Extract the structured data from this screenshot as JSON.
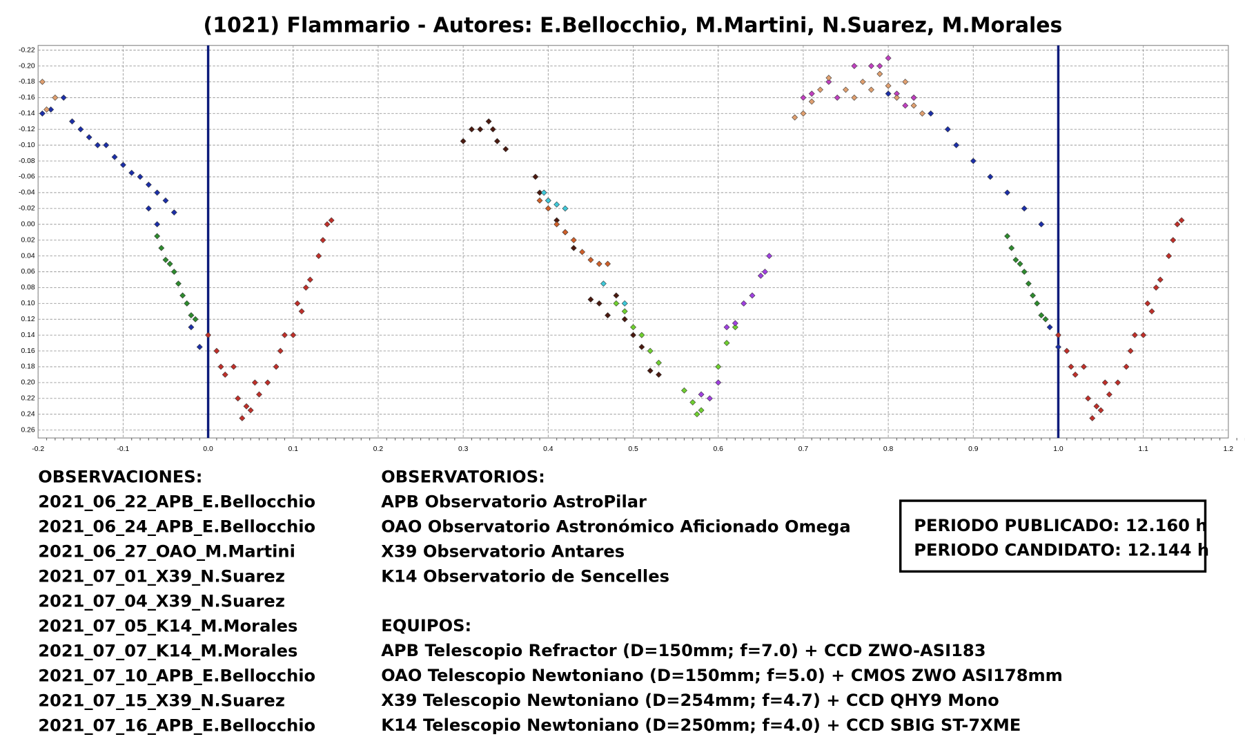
{
  "chart_data": {
    "type": "scatter",
    "title": "(1021) Flammario - Autores: E.Bellocchio, M.Martini, N.Suarez, M.Morales",
    "xlim": [
      -0.2,
      1.2
    ],
    "ylim": [
      -0.226,
      0.27
    ],
    "y_inverted": true,
    "grid": true,
    "vlines": [
      0,
      1
    ],
    "vline_color": "#0b1a7a",
    "xticks": [
      -0.2,
      -0.1,
      {
        "value": 0,
        "label": "0.0"
      },
      0.1,
      0.2,
      0.3,
      0.4,
      0.5,
      0.6,
      0.7,
      0.8,
      0.9,
      {
        "value": 1,
        "label": "1.0"
      },
      1.1,
      1.2
    ],
    "yticks": [
      {
        "value": -0.22,
        "label": "-0.22"
      },
      {
        "value": -0.2,
        "label": "-0.20"
      },
      {
        "value": -0.18,
        "label": "-0.18"
      },
      {
        "value": -0.16,
        "label": "-0.16"
      },
      {
        "value": -0.14,
        "label": "-0.14"
      },
      {
        "value": -0.12,
        "label": "-0.12"
      },
      {
        "value": -0.1,
        "label": "-0.10"
      },
      {
        "value": -0.08,
        "label": "-0.08"
      },
      {
        "value": -0.06,
        "label": "-0.06"
      },
      {
        "value": -0.04,
        "label": "-0.04"
      },
      {
        "value": -0.02,
        "label": "-0.02"
      },
      {
        "value": 0,
        "label": "0.00"
      },
      {
        "value": 0.02,
        "label": "0.02"
      },
      {
        "value": 0.04,
        "label": "0.04"
      },
      {
        "value": 0.06,
        "label": "0.06"
      },
      {
        "value": 0.08,
        "label": "0.08"
      },
      {
        "value": 0.1,
        "label": "0.10"
      },
      {
        "value": 0.12,
        "label": "0.12"
      },
      {
        "value": 0.14,
        "label": "0.14"
      },
      {
        "value": 0.16,
        "label": "0.16"
      },
      {
        "value": 0.18,
        "label": "0.18"
      },
      {
        "value": 0.2,
        "label": "0.20"
      },
      {
        "value": 0.22,
        "label": "0.22"
      },
      {
        "value": 0.24,
        "label": "0.24"
      },
      {
        "value": 0.26,
        "label": "0.26"
      }
    ],
    "series": [
      {
        "color": "#1c2fa8",
        "x": [
          -0.195,
          -0.185,
          -0.17,
          -0.16,
          -0.15,
          -0.14,
          -0.13,
          -0.12,
          -0.11,
          -0.1,
          -0.09,
          -0.08,
          -0.07,
          -0.06,
          -0.05,
          -0.04,
          -0.07,
          -0.06,
          -0.02,
          -0.01,
          0.8,
          0.83,
          0.85,
          0.87,
          0.88,
          0.9,
          0.92,
          0.94,
          0.96,
          0.98,
          0.99,
          1.0
        ],
        "y": [
          -0.14,
          -0.145,
          -0.16,
          -0.13,
          -0.12,
          -0.11,
          -0.1,
          -0.1,
          -0.085,
          -0.075,
          -0.065,
          -0.06,
          -0.05,
          -0.04,
          -0.03,
          -0.015,
          -0.02,
          0.0,
          0.13,
          0.155,
          -0.165,
          -0.16,
          -0.14,
          -0.12,
          -0.1,
          -0.08,
          -0.06,
          -0.04,
          -0.02,
          0.0,
          0.13,
          0.155
        ]
      },
      {
        "color": "#2e8b2e",
        "x": [
          -0.06,
          -0.055,
          -0.05,
          -0.045,
          -0.04,
          -0.035,
          -0.03,
          -0.025,
          -0.02,
          -0.015,
          0.94,
          0.945,
          0.95,
          0.955,
          0.96,
          0.965,
          0.97,
          0.975,
          0.98,
          0.985
        ],
        "y": [
          0.015,
          0.03,
          0.045,
          0.05,
          0.06,
          0.075,
          0.09,
          0.1,
          0.115,
          0.12,
          0.015,
          0.03,
          0.045,
          0.05,
          0.06,
          0.075,
          0.09,
          0.1,
          0.115,
          0.12
        ]
      },
      {
        "color": "#c0302a",
        "x": [
          0.0,
          0.01,
          0.015,
          0.02,
          0.03,
          0.035,
          0.04,
          0.045,
          0.05,
          0.055,
          0.06,
          0.07,
          0.08,
          0.085,
          0.09,
          0.1,
          0.105,
          0.11,
          0.115,
          0.12,
          0.13,
          0.135,
          0.14,
          0.145,
          1.0,
          1.01,
          1.015,
          1.02,
          1.03,
          1.035,
          1.04,
          1.045,
          1.05,
          1.055,
          1.06,
          1.07,
          1.08,
          1.085,
          1.09,
          1.1,
          1.105,
          1.11,
          1.115,
          1.12,
          1.13,
          1.135,
          1.14,
          1.145
        ],
        "y": [
          0.14,
          0.16,
          0.18,
          0.19,
          0.18,
          0.22,
          0.245,
          0.23,
          0.235,
          0.2,
          0.215,
          0.2,
          0.18,
          0.16,
          0.14,
          0.14,
          0.1,
          0.11,
          0.08,
          0.07,
          0.04,
          0.02,
          0.0,
          -0.005,
          0.14,
          0.16,
          0.18,
          0.19,
          0.18,
          0.22,
          0.245,
          0.23,
          0.235,
          0.2,
          0.215,
          0.2,
          0.18,
          0.16,
          0.14,
          0.14,
          0.1,
          0.11,
          0.08,
          0.07,
          0.04,
          0.02,
          0.0,
          -0.005
        ]
      },
      {
        "color": "#4a1a10",
        "x": [
          0.3,
          0.31,
          0.32,
          0.33,
          0.335,
          0.34,
          0.35,
          0.385,
          0.39,
          0.4,
          0.41,
          0.42,
          0.43,
          0.45,
          0.46,
          0.47,
          0.48,
          0.49,
          0.5,
          0.51,
          0.52,
          0.53
        ],
        "y": [
          -0.105,
          -0.12,
          -0.12,
          -0.13,
          -0.12,
          -0.105,
          -0.095,
          -0.06,
          -0.04,
          -0.03,
          -0.005,
          0.01,
          0.03,
          0.095,
          0.1,
          0.115,
          0.09,
          0.12,
          0.14,
          0.155,
          0.185,
          0.19
        ]
      },
      {
        "color": "#40c8d8",
        "x": [
          0.395,
          0.4,
          0.41,
          0.42,
          0.465,
          0.49
        ],
        "y": [
          -0.04,
          -0.03,
          -0.025,
          -0.02,
          0.075,
          0.1
        ]
      },
      {
        "color": "#d0602a",
        "x": [
          0.39,
          0.4,
          0.41,
          0.42,
          0.43,
          0.44,
          0.45,
          0.46,
          0.47
        ],
        "y": [
          -0.03,
          -0.02,
          0.0,
          0.01,
          0.02,
          0.035,
          0.045,
          0.05,
          0.05
        ]
      },
      {
        "color": "#70d030",
        "x": [
          0.48,
          0.49,
          0.5,
          0.51,
          0.52,
          0.53,
          0.56,
          0.57,
          0.575,
          0.58,
          0.6,
          0.61,
          0.62
        ],
        "y": [
          0.1,
          0.11,
          0.13,
          0.14,
          0.16,
          0.175,
          0.21,
          0.225,
          0.24,
          0.235,
          0.18,
          0.15,
          0.13
        ]
      },
      {
        "color": "#a040e0",
        "x": [
          0.58,
          0.59,
          0.6,
          0.61,
          0.62,
          0.63,
          0.64,
          0.65,
          0.655,
          0.66
        ],
        "y": [
          0.215,
          0.22,
          0.2,
          0.13,
          0.125,
          0.1,
          0.09,
          0.065,
          0.06,
          0.04
        ]
      },
      {
        "color": "#c040c0",
        "x": [
          0.7,
          0.71,
          0.73,
          0.74,
          0.76,
          0.78,
          0.79,
          0.8,
          0.81,
          0.82,
          0.83
        ],
        "y": [
          -0.16,
          -0.165,
          -0.18,
          -0.16,
          -0.2,
          -0.2,
          -0.2,
          -0.21,
          -0.165,
          -0.15,
          -0.16
        ]
      },
      {
        "color": "#e0a070",
        "x": [
          0.69,
          0.7,
          0.71,
          0.72,
          0.73,
          0.75,
          0.76,
          0.77,
          0.78,
          0.79,
          0.8,
          0.81,
          0.82,
          0.83,
          0.84,
          -0.195,
          -0.19,
          -0.18
        ],
        "y": [
          -0.135,
          -0.14,
          -0.155,
          -0.17,
          -0.185,
          -0.17,
          -0.16,
          -0.18,
          -0.17,
          -0.19,
          -0.175,
          -0.16,
          -0.18,
          -0.15,
          -0.14,
          -0.18,
          -0.145,
          -0.16
        ]
      }
    ]
  },
  "observations": {
    "title": "OBSERVACIONES:",
    "items": [
      "2021_06_22_APB_E.Bellocchio",
      "2021_06_24_APB_E.Bellocchio",
      "2021_06_27_OAO_M.Martini",
      "2021_07_01_X39_N.Suarez",
      "2021_07_04_X39_N.Suarez",
      "2021_07_05_K14_M.Morales",
      "2021_07_07_K14_M.Morales",
      "2021_07_10_APB_E.Bellocchio",
      "2021_07_15_X39_N.Suarez",
      "2021_07_16_APB_E.Bellocchio"
    ]
  },
  "observatories": {
    "title": "OBSERVATORIOS:",
    "items": [
      "APB Observatorio AstroPilar",
      "OAO Observatorio Astronómico Aficionado Omega",
      "X39 Observatorio Antares",
      "K14 Observatorio de Sencelles"
    ]
  },
  "equipment": {
    "title": "EQUIPOS:",
    "items": [
      "APB Telescopio Refractor (D=150mm; f=7.0) + CCD ZWO-ASI183",
      "OAO Telescopio Newtoniano (D=150mm; f=5.0) + CMOS ZWO ASI178mm",
      "X39 Telescopio Newtoniano (D=254mm; f=4.7) + CCD QHY9 Mono",
      "K14 Telescopio Newtoniano (D=250mm; f=4.0) + CCD SBIG ST-7XME"
    ]
  },
  "periods": [
    "PERIODO PUBLICADO: 12.160 h",
    "PERIODO CANDIDATO: 12.144 h"
  ]
}
